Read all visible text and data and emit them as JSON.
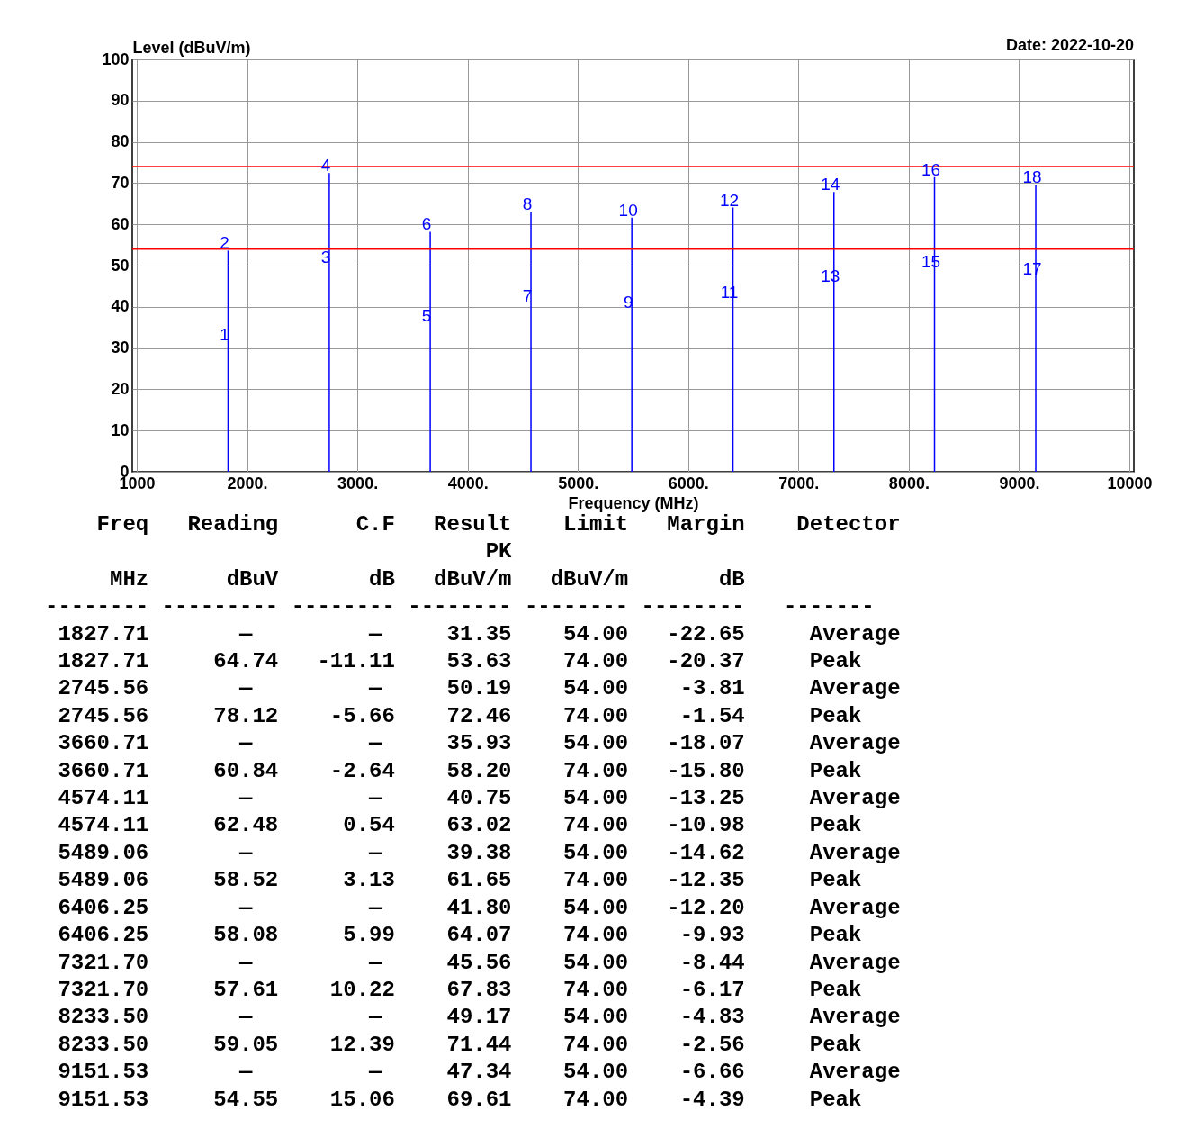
{
  "chart_data": {
    "type": "bar",
    "xlabel": "Frequency (MHz)",
    "ylabel": "Level (dBuV/m)",
    "xlim": [
      1000,
      10000
    ],
    "xticks": [
      {
        "value": 1000,
        "label": "1000"
      },
      {
        "value": 2000,
        "label": "2000."
      },
      {
        "value": 3000,
        "label": "3000."
      },
      {
        "value": 4000,
        "label": "4000."
      },
      {
        "value": 5000,
        "label": "5000."
      },
      {
        "value": 6000,
        "label": "6000."
      },
      {
        "value": 7000,
        "label": "7000."
      },
      {
        "value": 8000,
        "label": "8000."
      },
      {
        "value": 9000,
        "label": "9000."
      },
      {
        "value": 10000,
        "label": "10000"
      }
    ],
    "ylim": [
      0,
      100
    ],
    "yticks": [
      0,
      10,
      20,
      30,
      40,
      50,
      60,
      70,
      80,
      90,
      100
    ],
    "grid": true,
    "series": [
      {
        "color": "#0000ff",
        "x": [
          1827.71,
          2745.56,
          3660.71,
          4574.11,
          5489.06,
          6406.25,
          7321.7,
          8233.5,
          9151.53
        ],
        "values": [
          53.63,
          72.46,
          58.2,
          63.02,
          61.65,
          64.07,
          67.83,
          71.44,
          69.61
        ]
      }
    ],
    "ref_lines": [
      {
        "axis": "y",
        "value": 54,
        "color": "#ff0000"
      },
      {
        "axis": "y",
        "value": 74,
        "color": "#ff0000"
      }
    ],
    "annotations": [
      "Date: 2022-10-20",
      "    Freq   Reading      C.F   Result    Limit   Margin    Detector",
      "                                  PK",
      "     MHz      dBuV       dB   dBuV/m   dBuV/m       dB",
      "-------- --------- -------- -------- -------- --------   -------",
      " 1827.71       —         —     31.35    54.00   -22.65     Average",
      " 1827.71     64.74   -11.11    53.63    74.00   -20.37     Peak",
      " 2745.56       —         —     50.19    54.00    -3.81     Average",
      " 2745.56     78.12    -5.66    72.46    74.00    -1.54     Peak",
      " 3660.71       —         —     35.93    54.00   -18.07     Average",
      " 3660.71     60.84    -2.64    58.20    74.00   -15.80     Peak",
      " 4574.11       —         —     40.75    54.00   -13.25     Average",
      " 4574.11     62.48     0.54    63.02    74.00   -10.98     Peak",
      " 5489.06       —         —     39.38    54.00   -14.62     Average",
      " 5489.06     58.52     3.13    61.65    74.00   -12.35     Peak",
      " 6406.25       —         —     41.80    54.00   -12.20     Average",
      " 6406.25     58.08     5.99    64.07    74.00    -9.93     Peak",
      " 7321.70       —         —     45.56    54.00    -8.44     Average",
      " 7321.70     57.61    10.22    67.83    74.00    -6.17     Peak",
      " 8233.50       —         —     49.17    54.00    -4.83     Average",
      " 8233.50     59.05    12.39    71.44    74.00    -2.56     Peak",
      " 9151.53       —         —     47.34    54.00    -6.66     Average",
      " 9151.53     54.55    15.06    69.61    74.00    -4.39     Peak",
      {
        "text": "1",
        "x": 1827.71,
        "y": 31.35
      },
      {
        "text": "2",
        "x": 1827.71,
        "y": 53.63
      },
      {
        "text": "3",
        "x": 2745.56,
        "y": 50.19
      },
      {
        "text": "4",
        "x": 2745.56,
        "y": 72.46
      },
      {
        "text": "5",
        "x": 3660.71,
        "y": 35.93
      },
      {
        "text": "6",
        "x": 3660.71,
        "y": 58.2
      },
      {
        "text": "7",
        "x": 4574.11,
        "y": 40.75
      },
      {
        "text": "8",
        "x": 4574.11,
        "y": 63.02
      },
      {
        "text": "9",
        "x": 5489.06,
        "y": 39.38
      },
      {
        "text": "10",
        "x": 5489.06,
        "y": 61.65
      },
      {
        "text": "11",
        "x": 6406.25,
        "y": 41.8
      },
      {
        "text": "12",
        "x": 6406.25,
        "y": 64.07
      },
      {
        "text": "13",
        "x": 7321.7,
        "y": 45.56
      },
      {
        "text": "14",
        "x": 7321.7,
        "y": 67.83
      },
      {
        "text": "15",
        "x": 8233.5,
        "y": 49.17
      },
      {
        "text": "16",
        "x": 8233.5,
        "y": 71.44
      },
      {
        "text": "17",
        "x": 9151.53,
        "y": 47.34
      },
      {
        "text": "18",
        "x": 9151.53,
        "y": 69.61
      }
    ]
  }
}
